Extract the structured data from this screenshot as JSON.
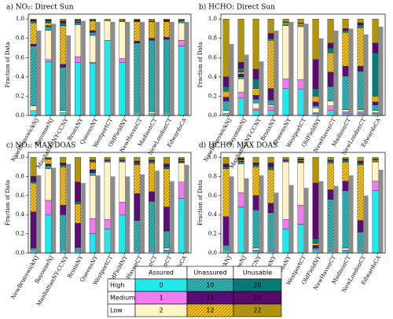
{
  "chart_data": [
    {
      "type": "stacked_bar",
      "title": "a) NO₂: Direct Sun",
      "ylabel": "Fraction of Data",
      "categories": [
        "NewBrunswickNJ",
        "BayonneNJ",
        "ManhattanNY-CCNY",
        "BronxNY",
        "QueensNY",
        "WestportCT",
        "OldFieldNY",
        "NewHavenCT",
        "MadisonCT",
        "NewLondonCT",
        "EdwardsCA"
      ],
      "colors": [
        "#22e8ec",
        "#f07cf0",
        "#fff4c8",
        "#3ab4b4",
        "#5c0f78",
        "#f2c21a",
        "#0a7a78",
        "#5a0a6a",
        "#b09410"
      ],
      "hatched": [
        false,
        false,
        false,
        true,
        true,
        true,
        false,
        false,
        false
      ],
      "stacks": [
        [
          0.05,
          0,
          0.05,
          0.62,
          0.02,
          0.22,
          0.02,
          0.01,
          0.01
        ],
        [
          0.56,
          0.02,
          0.3,
          0.04,
          0.01,
          0.03,
          0.02,
          0.01,
          0.01
        ],
        [
          0.03,
          0,
          0.02,
          0.45,
          0.03,
          0.4,
          0.03,
          0.02,
          0.02
        ],
        [
          0.55,
          0.06,
          0.33,
          0.02,
          0.01,
          0.01,
          0.01,
          0,
          0.01
        ],
        [
          0.54,
          0.01,
          0.28,
          0.03,
          0.02,
          0.1,
          0.01,
          0,
          0.01
        ],
        [
          0.78,
          0,
          0.2,
          0,
          0,
          0,
          0,
          0,
          0.02
        ],
        [
          0.55,
          0.04,
          0.38,
          0.01,
          0,
          0.01,
          0,
          0,
          0.01
        ],
        [
          0.02,
          0,
          0.01,
          0.72,
          0.02,
          0.2,
          0.01,
          0.01,
          0.01
        ],
        [
          0.02,
          0,
          0.02,
          0.74,
          0.02,
          0.17,
          0.01,
          0,
          0.02
        ],
        [
          0.02,
          0,
          0.01,
          0.76,
          0.02,
          0.16,
          0.01,
          0.01,
          0.01
        ],
        [
          0.72,
          0.06,
          0.18,
          0.01,
          0,
          0.01,
          0.01,
          0,
          0.01
        ]
      ],
      "reference_color": "#8c8c8c",
      "reference_values": [
        0.88,
        0.95,
        0.83,
        0.98,
        0.97,
        0.97,
        0.97,
        0.97,
        0.97,
        0.97,
        0.97
      ],
      "ylim": [
        0,
        1.05
      ],
      "yticks": [
        {
          "value": 0,
          "label": "0.0"
        },
        0.2,
        0.4,
        0.6,
        0.8,
        {
          "value": 1,
          "label": "1.0"
        }
      ]
    },
    {
      "type": "stacked_bar",
      "title": "b) HCHO: Direct Sun",
      "ylabel": "Fraction of Data",
      "categories": [
        "NewBrunswickNJ",
        "BayonneNJ",
        "ManhattanNY-CCNY",
        "BronxNY",
        "QueensNY",
        "WestportCT",
        "OldFieldNY",
        "NewHavenCT",
        "MadisonCT",
        "NewLondonCT",
        "EdwardsCA"
      ],
      "colors": [
        "#22e8ec",
        "#f07cf0",
        "#fff4c8",
        "#3ab4b4",
        "#5c0f78",
        "#f2c21a",
        "#0a7a78",
        "#5a0a6a",
        "#b09410"
      ],
      "hatched": [
        false,
        false,
        false,
        true,
        true,
        true,
        false,
        false,
        false
      ],
      "stacks": [
        [
          0.02,
          0,
          0.03,
          0.1,
          0.04,
          0.06,
          0.05,
          0.1,
          0.6
        ],
        [
          0.18,
          0.06,
          0.14,
          0.02,
          0.03,
          0.02,
          0.04,
          0.06,
          0.45
        ],
        [
          0.05,
          0.02,
          0.06,
          0.04,
          0.04,
          0.07,
          0.1,
          0.1,
          0.52
        ],
        [
          0.05,
          0.04,
          0.02,
          0.05,
          0.12,
          0.5,
          0.02,
          0.05,
          0.15
        ],
        [
          0.28,
          0.1,
          0.55,
          0.01,
          0,
          0.02,
          0.01,
          0,
          0.03
        ],
        [
          0.27,
          0.1,
          0.55,
          0.01,
          0,
          0.02,
          0.01,
          0,
          0.04
        ],
        [
          0.02,
          0.01,
          0.05,
          0.02,
          0.04,
          0.06,
          0.08,
          0.3,
          0.42
        ],
        [
          0.05,
          0.05,
          0.05,
          0.15,
          0.15,
          0.2,
          0.05,
          0.05,
          0.25
        ],
        [
          0.02,
          0.02,
          0.02,
          0.35,
          0.1,
          0.35,
          0.02,
          0.02,
          0.1
        ],
        [
          0.02,
          0.02,
          0.02,
          0.4,
          0.05,
          0.4,
          0.03,
          0.02,
          0.04
        ],
        [
          0.02,
          0.01,
          0.02,
          0.06,
          0.03,
          0.06,
          0.45,
          0.1,
          0.25
        ]
      ],
      "reference_color": "#8c8c8c",
      "reference_values": [
        0.74,
        0.63,
        0.56,
        0.88,
        0.97,
        0.95,
        0.8,
        0.88,
        0.9,
        0.84,
        0.92
      ],
      "ylim": [
        0,
        1.05
      ],
      "yticks": [
        {
          "value": 0,
          "label": "0.0"
        },
        0.2,
        0.4,
        0.6,
        0.8,
        {
          "value": 1,
          "label": "1.0"
        }
      ]
    },
    {
      "type": "stacked_bar",
      "title": "c) NO₂: MAX DOAS",
      "ylabel": "Fraction of Data",
      "categories": [
        "NewBrunswickNJ",
        "BayonneNJ",
        "ManhattanNY-CCNY",
        "BronxNY",
        "QueensNY",
        "WestportCT",
        "OldFieldNY",
        "NewHavenCT",
        "MadisonCT",
        "NewLondonCT",
        "EdwardsCA"
      ],
      "colors": [
        "#22e8ec",
        "#f07cf0",
        "#fff4c8",
        "#3ab4b4",
        "#5c0f78",
        "#f2c21a",
        "#0a7a78",
        "#5a0a6a",
        "#b09410"
      ],
      "hatched": [
        false,
        false,
        false,
        true,
        true,
        true,
        false,
        false,
        false
      ],
      "stacks": [
        [
          0.02,
          0,
          0.01,
          0.02,
          0.38,
          0.3,
          0.02,
          0.05,
          0.2
        ],
        [
          0.4,
          0.15,
          0.33,
          0.03,
          0.02,
          0.05,
          0.01,
          0,
          0.01
        ],
        [
          0.02,
          0,
          0.01,
          0.37,
          0.1,
          0.4,
          0.02,
          0.02,
          0.06
        ],
        [
          0.02,
          0.01,
          0.01,
          0.02,
          0.25,
          0.2,
          0.03,
          0.2,
          0.26
        ],
        [
          0.2,
          0.16,
          0.45,
          0.03,
          0.03,
          0.08,
          0.01,
          0.01,
          0.03
        ],
        [
          0.25,
          0.1,
          0.6,
          0.01,
          0.01,
          0.01,
          0,
          0,
          0.02
        ],
        [
          0.4,
          0.13,
          0.42,
          0.01,
          0.01,
          0.01,
          0,
          0,
          0.02
        ],
        [
          0.02,
          0.01,
          0.01,
          0.3,
          0.28,
          0.3,
          0.02,
          0.02,
          0.04
        ],
        [
          0.02,
          0.01,
          0.01,
          0.5,
          0.1,
          0.3,
          0.02,
          0.01,
          0.03
        ],
        [
          0.02,
          0.01,
          0.02,
          0.18,
          0.25,
          0.4,
          0.02,
          0.03,
          0.07
        ],
        [
          0.57,
          0.17,
          0.2,
          0.01,
          0.01,
          0.01,
          0.01,
          0,
          0.02
        ]
      ],
      "reference_color": "#8c8c8c",
      "reference_values": [
        0.81,
        0.89,
        0.93,
        0.73,
        0.81,
        0.8,
        0.8,
        0.82,
        0.86,
        0.75,
        0.92
      ],
      "ylim": [
        0,
        1.05
      ],
      "yticks": [
        {
          "value": 0,
          "label": "0.0"
        },
        0.2,
        0.4,
        0.6,
        0.8,
        {
          "value": 1,
          "label": "1.0"
        }
      ]
    },
    {
      "type": "stacked_bar",
      "title": "d) HCHO: MAX DOAS",
      "ylabel": "Fraction of Data",
      "categories": [
        "NewBrunswickNJ",
        "BayonneNJ",
        "ManhattanNY-CCNY",
        "BronxNY",
        "QueensNY",
        "WestportCT",
        "OldFieldNY",
        "NewHavenCT",
        "MadisonCT",
        "NewLondonCT",
        "EdwardsCA"
      ],
      "colors": [
        "#22e8ec",
        "#f07cf0",
        "#fff4c8",
        "#3ab4b4",
        "#5c0f78",
        "#f2c21a",
        "#0a7a78",
        "#5a0a6a",
        "#b09410"
      ],
      "hatched": [
        false,
        false,
        false,
        true,
        true,
        true,
        false,
        false,
        false
      ],
      "stacks": [
        [
          0.02,
          0,
          0.01,
          0.05,
          0.3,
          0.5,
          0.02,
          0.03,
          0.07
        ],
        [
          0.48,
          0.15,
          0.3,
          0.02,
          0.01,
          0.01,
          0.01,
          0.01,
          0.01
        ],
        [
          0.02,
          0.01,
          0.02,
          0.4,
          0.15,
          0.3,
          0.02,
          0.02,
          0.06
        ],
        [
          0.02,
          0.01,
          0.01,
          0.38,
          0.1,
          0.35,
          0.03,
          0.04,
          0.06
        ],
        [
          0.25,
          0.1,
          0.6,
          0.01,
          0.01,
          0.01,
          0,
          0,
          0.02
        ],
        [
          0.3,
          0.2,
          0.44,
          0.01,
          0.01,
          0.01,
          0,
          0.01,
          0.02
        ],
        [
          0.02,
          0,
          0.01,
          0.02,
          0.03,
          0.02,
          0.05,
          0.58,
          0.27
        ],
        [
          0.02,
          0.01,
          0.01,
          0.52,
          0.1,
          0.28,
          0.02,
          0.01,
          0.03
        ],
        [
          0.02,
          0.01,
          0.02,
          0.6,
          0.1,
          0.2,
          0.02,
          0.01,
          0.02
        ],
        [
          0.02,
          0.01,
          0.01,
          0.18,
          0.12,
          0.58,
          0.02,
          0.02,
          0.04
        ],
        [
          0.65,
          0.1,
          0.2,
          0.01,
          0,
          0.01,
          0.01,
          0,
          0.02
        ]
      ],
      "reference_color": "#8c8c8c",
      "reference_values": [
        0.8,
        0.78,
        0.81,
        0.63,
        0.71,
        0.68,
        0.75,
        0.7,
        0.81,
        0.6,
        0.87
      ],
      "ylim": [
        0,
        1.05
      ],
      "yticks": [
        {
          "value": 0,
          "label": "0.0"
        },
        0.2,
        0.4,
        0.6,
        0.8,
        {
          "value": 1,
          "label": "1.0"
        }
      ]
    }
  ],
  "legend_table": {
    "columns": [
      "Assured",
      "Unassured",
      "Unusable"
    ],
    "rows": [
      "High",
      "Medium",
      "Low"
    ],
    "codes": [
      [
        0,
        10,
        20
      ],
      [
        1,
        11,
        21
      ],
      [
        2,
        12,
        22
      ]
    ]
  }
}
